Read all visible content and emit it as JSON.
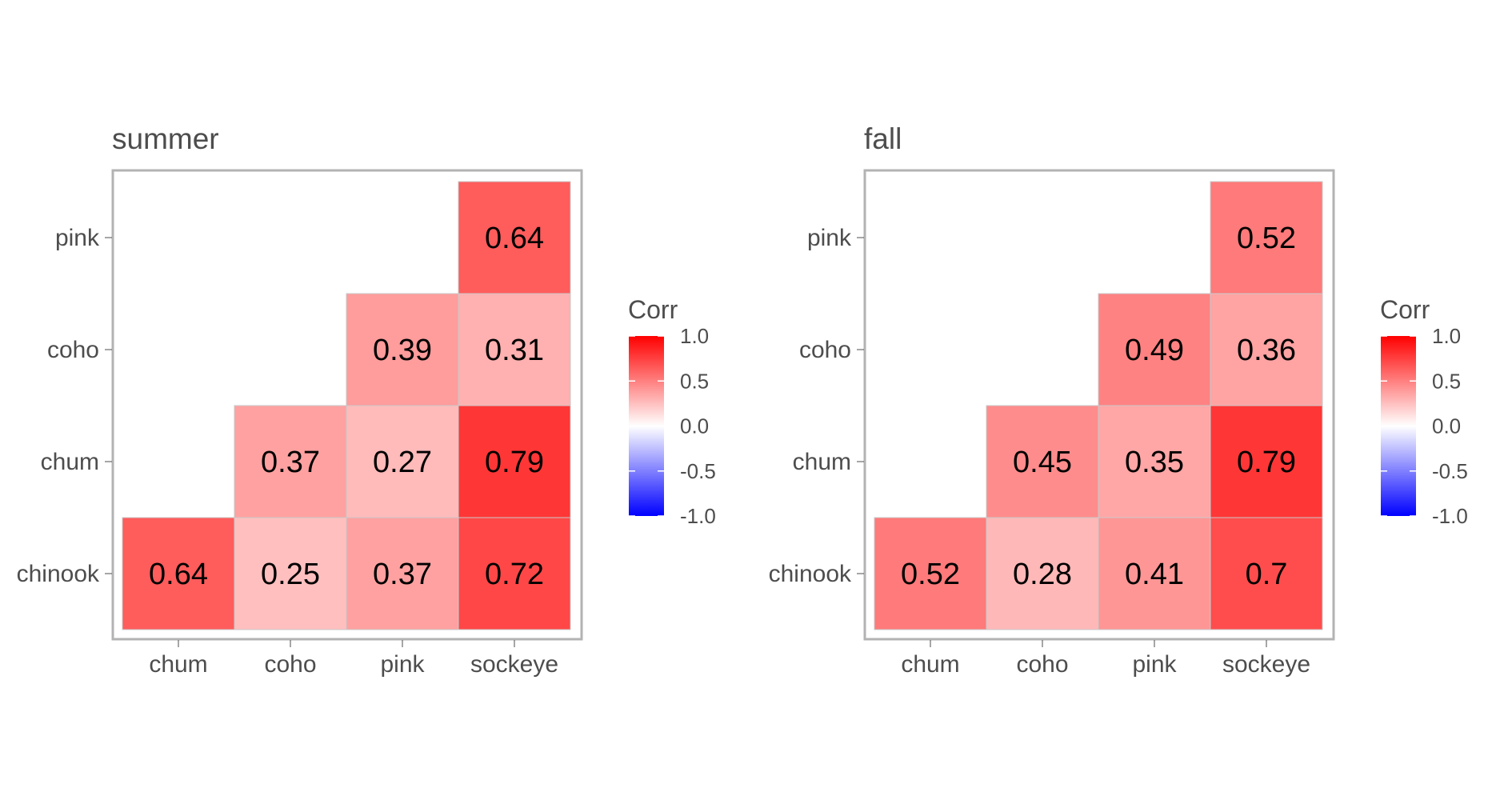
{
  "chart_data": [
    {
      "type": "heatmap",
      "title": "summer",
      "x_categories": [
        "chum",
        "coho",
        "pink",
        "sockeye"
      ],
      "y_categories": [
        "chinook",
        "chum",
        "coho",
        "pink"
      ],
      "cells": [
        {
          "x": "chum",
          "y": "chinook",
          "value": 0.64,
          "label": "0.64"
        },
        {
          "x": "coho",
          "y": "chinook",
          "value": 0.25,
          "label": "0.25"
        },
        {
          "x": "pink",
          "y": "chinook",
          "value": 0.37,
          "label": "0.37"
        },
        {
          "x": "sockeye",
          "y": "chinook",
          "value": 0.72,
          "label": "0.72"
        },
        {
          "x": "coho",
          "y": "chum",
          "value": 0.37,
          "label": "0.37"
        },
        {
          "x": "pink",
          "y": "chum",
          "value": 0.27,
          "label": "0.27"
        },
        {
          "x": "sockeye",
          "y": "chum",
          "value": 0.79,
          "label": "0.79"
        },
        {
          "x": "pink",
          "y": "coho",
          "value": 0.39,
          "label": "0.39"
        },
        {
          "x": "sockeye",
          "y": "coho",
          "value": 0.31,
          "label": "0.31"
        },
        {
          "x": "sockeye",
          "y": "pink",
          "value": 0.64,
          "label": "0.64"
        }
      ],
      "legend": {
        "title": "Corr",
        "range": [
          -1.0,
          1.0
        ],
        "ticks": [
          1.0,
          0.5,
          0.0,
          -0.5,
          -1.0
        ],
        "tick_labels": [
          "1.0",
          "0.5",
          "0.0",
          "-0.5",
          "-1.0"
        ],
        "colors": {
          "low": "#0000ff",
          "mid": "#ffffff",
          "high": "#ff0000"
        }
      }
    },
    {
      "type": "heatmap",
      "title": "fall",
      "x_categories": [
        "chum",
        "coho",
        "pink",
        "sockeye"
      ],
      "y_categories": [
        "chinook",
        "chum",
        "coho",
        "pink"
      ],
      "cells": [
        {
          "x": "chum",
          "y": "chinook",
          "value": 0.52,
          "label": "0.52"
        },
        {
          "x": "coho",
          "y": "chinook",
          "value": 0.28,
          "label": "0.28"
        },
        {
          "x": "pink",
          "y": "chinook",
          "value": 0.41,
          "label": "0.41"
        },
        {
          "x": "sockeye",
          "y": "chinook",
          "value": 0.7,
          "label": "0.7"
        },
        {
          "x": "coho",
          "y": "chum",
          "value": 0.45,
          "label": "0.45"
        },
        {
          "x": "pink",
          "y": "chum",
          "value": 0.35,
          "label": "0.35"
        },
        {
          "x": "sockeye",
          "y": "chum",
          "value": 0.79,
          "label": "0.79"
        },
        {
          "x": "pink",
          "y": "coho",
          "value": 0.49,
          "label": "0.49"
        },
        {
          "x": "sockeye",
          "y": "coho",
          "value": 0.36,
          "label": "0.36"
        },
        {
          "x": "sockeye",
          "y": "pink",
          "value": 0.52,
          "label": "0.52"
        }
      ],
      "legend": {
        "title": "Corr",
        "range": [
          -1.0,
          1.0
        ],
        "ticks": [
          1.0,
          0.5,
          0.0,
          -0.5,
          -1.0
        ],
        "tick_labels": [
          "1.0",
          "0.5",
          "0.0",
          "-0.5",
          "-1.0"
        ],
        "colors": {
          "low": "#0000ff",
          "mid": "#ffffff",
          "high": "#ff0000"
        }
      }
    }
  ]
}
